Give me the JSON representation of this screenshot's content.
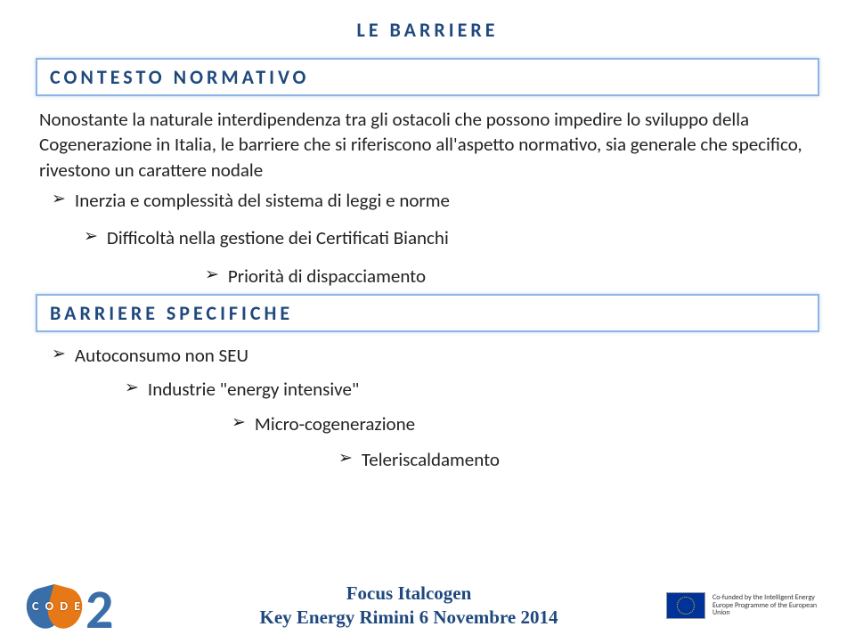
{
  "title": "LE BARRIERE",
  "section1_header": "CONTESTO NORMATIVO",
  "paragraph": "Nonostante la naturale interdipendenza tra gli ostacoli che possono impedire lo sviluppo della Cogenerazione in Italia, le barriere che si riferiscono all'aspetto normativo, sia generale che specifico, rivestono un carattere nodale",
  "bullet1": "Inerzia e complessità del sistema di leggi e norme",
  "bullet2": "Difficoltà nella gestione dei Certificati Bianchi",
  "bullet3": "Priorità di dispacciamento",
  "section2_header": "BARRIERE SPECIFICHE",
  "bullet4": "Autoconsumo non SEU",
  "bullet5": "Industrie \"energy intensive\"",
  "bullet6": "Micro-cogenerazione",
  "bullet7": "Teleriscaldamento",
  "footer_line1": "Focus Italcogen",
  "footer_line2": "Key Energy Rimini 6 Novembre 2014",
  "code_label": "C O D E",
  "eu_text": "Co-funded by the Intelligent Energy Europe Programme of the European Union",
  "colors": {
    "heading": "#1f497d",
    "border": "#8eb4e3",
    "text": "#222222",
    "logo_blue": "#3a6ea8",
    "logo_orange": "#e67817",
    "eu_blue": "#003399",
    "eu_gold": "#ffcc00"
  }
}
